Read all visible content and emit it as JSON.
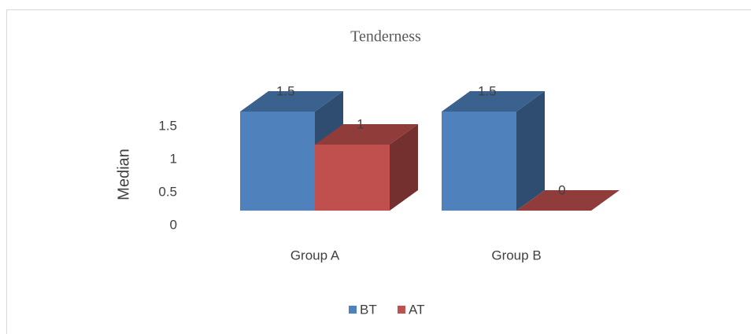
{
  "chart_data": {
    "type": "bar3d",
    "title": "Tenderness",
    "y_label": "Median",
    "categories": [
      "Group A",
      "Group B"
    ],
    "series": [
      {
        "name": "BT",
        "color": "#4f81bd",
        "values": [
          1.5,
          1.5
        ]
      },
      {
        "name": "AT",
        "color": "#c0504d",
        "values": [
          1,
          0
        ]
      }
    ],
    "ylim": [
      0,
      2
    ],
    "yticks": [
      0,
      0.5,
      1,
      1.5
    ],
    "legend": "bottom"
  }
}
